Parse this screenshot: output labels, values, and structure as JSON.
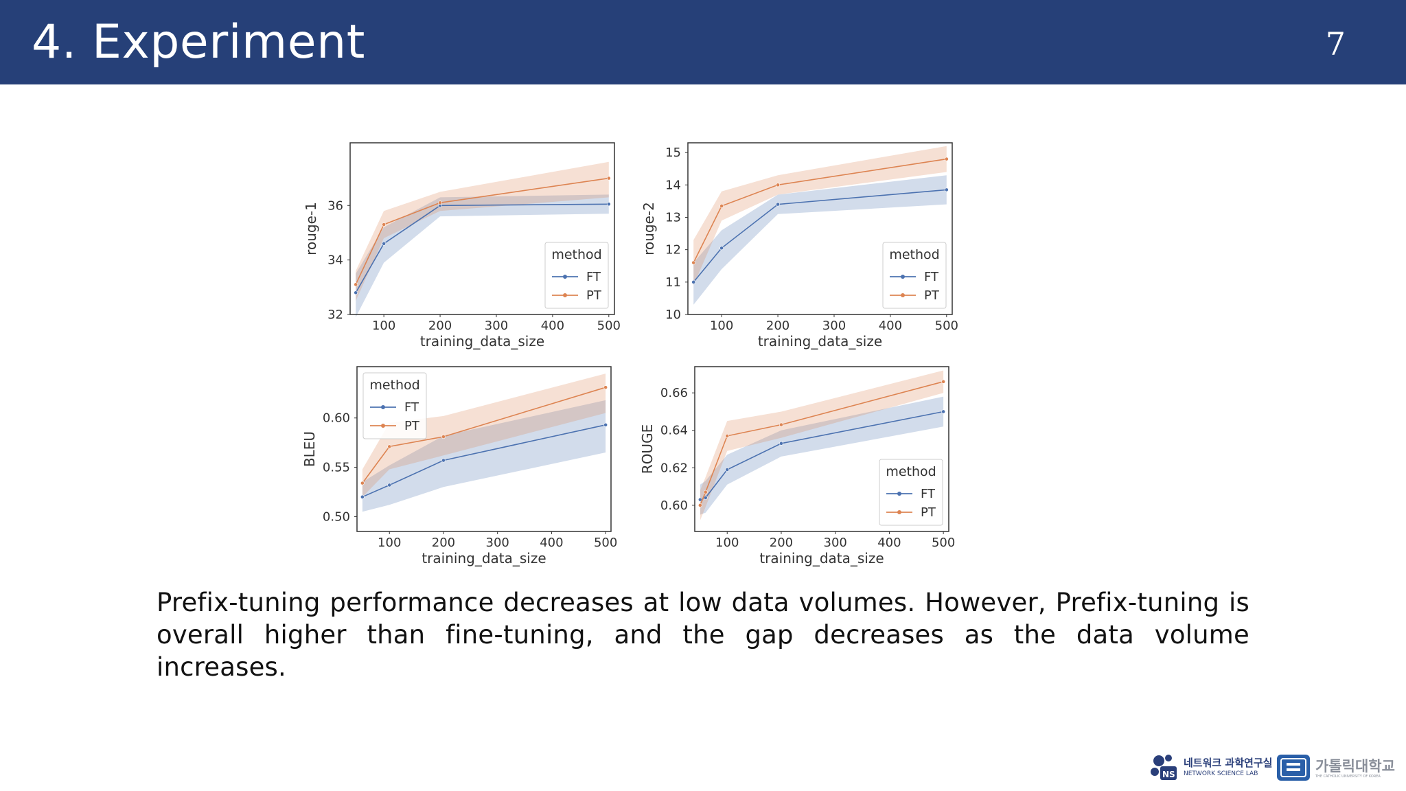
{
  "slide": {
    "title": "4. Experiment",
    "page_number": "7",
    "caption": "Prefix-tuning performance decreases at low data volumes. However, Prefix-tuning is overall higher than fine-tuning, and the gap decreases as the data volume increases."
  },
  "logos": {
    "ns_korean": "네트워크 과학연구실",
    "ns_english": "NETWORK SCIENCE LAB",
    "ns_badge": "NS",
    "cuk_korean": "가톨릭대학교",
    "cuk_english": "THE CATHOLIC UNIVERSITY OF KOREA"
  },
  "colors": {
    "header": "#264078",
    "ft": "#4c72b0",
    "pt": "#dd8452"
  },
  "chart_data": [
    {
      "type": "line",
      "xlabel": "training_data_size",
      "ylabel": "rouge-1",
      "xlim": [
        40,
        510
      ],
      "ylim": [
        32,
        38.3
      ],
      "xticks": [
        100,
        200,
        300,
        400,
        500
      ],
      "yticks": [
        32,
        34,
        36
      ],
      "legend": {
        "title": "method",
        "position": "lower-right"
      },
      "x": [
        50,
        100,
        200,
        500
      ],
      "series": [
        {
          "name": "FT",
          "color": "#4c72b0",
          "values": [
            32.8,
            34.6,
            36.0,
            36.05
          ],
          "lower": [
            31.9,
            33.9,
            35.6,
            35.7
          ],
          "upper": [
            33.5,
            35.2,
            36.3,
            36.4
          ]
        },
        {
          "name": "PT",
          "color": "#dd8452",
          "values": [
            33.1,
            35.3,
            36.1,
            37.0
          ],
          "lower": [
            32.5,
            34.8,
            35.8,
            36.3
          ],
          "upper": [
            33.6,
            35.8,
            36.5,
            37.6
          ]
        }
      ]
    },
    {
      "type": "line",
      "xlabel": "training_data_size",
      "ylabel": "rouge-2",
      "xlim": [
        40,
        510
      ],
      "ylim": [
        10,
        15.3
      ],
      "xticks": [
        100,
        200,
        300,
        400,
        500
      ],
      "yticks": [
        10,
        11,
        12,
        13,
        14,
        15
      ],
      "legend": {
        "title": "method",
        "position": "lower-right"
      },
      "x": [
        50,
        100,
        200,
        500
      ],
      "series": [
        {
          "name": "FT",
          "color": "#4c72b0",
          "values": [
            11.0,
            12.05,
            13.4,
            13.85
          ],
          "lower": [
            10.3,
            11.4,
            13.1,
            13.4
          ],
          "upper": [
            11.6,
            12.6,
            13.7,
            14.3
          ]
        },
        {
          "name": "PT",
          "color": "#dd8452",
          "values": [
            11.6,
            13.35,
            14.0,
            14.8
          ],
          "lower": [
            10.9,
            12.9,
            13.7,
            14.4
          ],
          "upper": [
            12.3,
            13.8,
            14.3,
            15.2
          ]
        }
      ]
    },
    {
      "type": "line",
      "xlabel": "training_data_size",
      "ylabel": "BLEU",
      "xlim": [
        40,
        510
      ],
      "ylim": [
        0.485,
        0.652
      ],
      "xticks": [
        100,
        200,
        300,
        400,
        500
      ],
      "yticks": [
        0.5,
        0.55,
        0.6
      ],
      "legend": {
        "title": "method",
        "position": "upper-left"
      },
      "x": [
        50,
        100,
        200,
        500
      ],
      "series": [
        {
          "name": "FT",
          "color": "#4c72b0",
          "values": [
            0.52,
            0.532,
            0.557,
            0.593
          ],
          "lower": [
            0.505,
            0.512,
            0.53,
            0.565
          ],
          "upper": [
            0.535,
            0.552,
            0.582,
            0.618
          ]
        },
        {
          "name": "PT",
          "color": "#dd8452",
          "values": [
            0.534,
            0.571,
            0.581,
            0.631
          ],
          "lower": [
            0.52,
            0.548,
            0.562,
            0.605
          ],
          "upper": [
            0.548,
            0.595,
            0.602,
            0.645
          ]
        }
      ]
    },
    {
      "type": "line",
      "xlabel": "training_data_size",
      "ylabel": "ROUGE",
      "xlim": [
        40,
        510
      ],
      "ylim": [
        0.586,
        0.674
      ],
      "xticks": [
        100,
        200,
        300,
        400,
        500
      ],
      "yticks": [
        0.6,
        0.62,
        0.64,
        0.66
      ],
      "legend": {
        "title": "method",
        "position": "lower-right"
      },
      "x": [
        50,
        60,
        100,
        200,
        500
      ],
      "series": [
        {
          "name": "FT",
          "color": "#4c72b0",
          "values": [
            0.603,
            0.604,
            0.619,
            0.633,
            0.65
          ],
          "lower": [
            0.595,
            0.596,
            0.611,
            0.626,
            0.642
          ],
          "upper": [
            0.611,
            0.613,
            0.627,
            0.64,
            0.658
          ]
        },
        {
          "name": "PT",
          "color": "#dd8452",
          "values": [
            0.6,
            0.607,
            0.637,
            0.643,
            0.666
          ],
          "lower": [
            0.592,
            0.599,
            0.629,
            0.636,
            0.66
          ],
          "upper": [
            0.608,
            0.615,
            0.645,
            0.65,
            0.672
          ]
        }
      ]
    }
  ]
}
